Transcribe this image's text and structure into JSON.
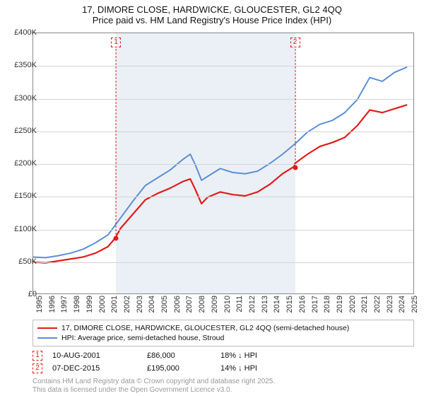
{
  "title_line1": "17, DIMORE CLOSE, HARDWICKE, GLOUCESTER, GL2 4QQ",
  "title_line2": "Price paid vs. HM Land Registry's House Price Index (HPI)",
  "chart": {
    "type": "line",
    "x_years": [
      1995,
      1996,
      1997,
      1998,
      1999,
      2000,
      2001,
      2002,
      2003,
      2004,
      2005,
      2006,
      2007,
      2008,
      2009,
      2010,
      2011,
      2012,
      2013,
      2014,
      2015,
      2016,
      2017,
      2018,
      2019,
      2020,
      2021,
      2022,
      2023,
      2024,
      2025
    ],
    "xlim": [
      1995,
      2025.5
    ],
    "ylim": [
      0,
      400000
    ],
    "y_ticks": [
      0,
      50000,
      100000,
      150000,
      200000,
      250000,
      300000,
      350000,
      400000
    ],
    "y_tick_labels": [
      "£0",
      "£50K",
      "£100K",
      "£150K",
      "£200K",
      "£250K",
      "£300K",
      "£350K",
      "£400K"
    ],
    "shade_band": {
      "start": 2001.61,
      "end": 2015.93,
      "color": "#bcd0e0",
      "opacity": 0.35
    },
    "series": [
      {
        "name": "property",
        "color": "#e31b1b",
        "width": 2.2,
        "points": [
          [
            1995,
            48000
          ],
          [
            1996,
            47000
          ],
          [
            1997,
            50000
          ],
          [
            1998,
            53000
          ],
          [
            1999,
            56000
          ],
          [
            2000,
            62000
          ],
          [
            2001,
            72000
          ],
          [
            2001.61,
            86000
          ],
          [
            2002,
            100000
          ],
          [
            2003,
            122000
          ],
          [
            2004,
            144000
          ],
          [
            2005,
            154000
          ],
          [
            2006,
            162000
          ],
          [
            2007,
            172000
          ],
          [
            2007.6,
            176000
          ],
          [
            2008,
            160000
          ],
          [
            2008.5,
            138000
          ],
          [
            2009,
            148000
          ],
          [
            2010,
            156000
          ],
          [
            2011,
            152000
          ],
          [
            2012,
            150000
          ],
          [
            2013,
            156000
          ],
          [
            2014,
            168000
          ],
          [
            2015,
            184000
          ],
          [
            2015.93,
            195000
          ],
          [
            2016,
            200000
          ],
          [
            2017,
            214000
          ],
          [
            2018,
            226000
          ],
          [
            2019,
            232000
          ],
          [
            2020,
            240000
          ],
          [
            2021,
            258000
          ],
          [
            2022,
            282000
          ],
          [
            2023,
            278000
          ],
          [
            2024,
            284000
          ],
          [
            2025,
            290000
          ]
        ]
      },
      {
        "name": "hpi",
        "color": "#5b8fd6",
        "width": 2.0,
        "points": [
          [
            1995,
            56000
          ],
          [
            1996,
            55000
          ],
          [
            1997,
            58000
          ],
          [
            1998,
            62000
          ],
          [
            1999,
            68000
          ],
          [
            2000,
            78000
          ],
          [
            2001,
            90000
          ],
          [
            2002,
            116000
          ],
          [
            2003,
            142000
          ],
          [
            2004,
            166000
          ],
          [
            2005,
            178000
          ],
          [
            2006,
            190000
          ],
          [
            2007,
            206000
          ],
          [
            2007.6,
            214000
          ],
          [
            2008,
            198000
          ],
          [
            2008.5,
            174000
          ],
          [
            2009,
            180000
          ],
          [
            2010,
            192000
          ],
          [
            2011,
            186000
          ],
          [
            2012,
            184000
          ],
          [
            2013,
            188000
          ],
          [
            2014,
            200000
          ],
          [
            2015,
            214000
          ],
          [
            2016,
            230000
          ],
          [
            2017,
            248000
          ],
          [
            2018,
            260000
          ],
          [
            2019,
            266000
          ],
          [
            2020,
            278000
          ],
          [
            2021,
            298000
          ],
          [
            2022,
            332000
          ],
          [
            2023,
            326000
          ],
          [
            2024,
            340000
          ],
          [
            2025,
            348000
          ]
        ]
      }
    ],
    "markers": [
      {
        "id": "1",
        "x": 2001.61,
        "y": 86000,
        "color": "#e31b1b"
      },
      {
        "id": "2",
        "x": 2015.93,
        "y": 195000,
        "color": "#e31b1b"
      }
    ],
    "background_color": "#ffffff",
    "grid_color": "#d4d4d4",
    "axis_color": "#888888"
  },
  "legend": {
    "items": [
      {
        "color": "#e31b1b",
        "label": "17, DIMORE CLOSE, HARDWICKE, GLOUCESTER, GL2 4QQ (semi-detached house)"
      },
      {
        "color": "#5b8fd6",
        "label": "HPI: Average price, semi-detached house, Stroud"
      }
    ]
  },
  "sales": [
    {
      "id": "1",
      "color": "#e31b1b",
      "date": "10-AUG-2001",
      "price": "£86,000",
      "delta": "18% ↓ HPI"
    },
    {
      "id": "2",
      "color": "#e31b1b",
      "date": "07-DEC-2015",
      "price": "£195,000",
      "delta": "14% ↓ HPI"
    }
  ],
  "footer": {
    "line1": "Contains HM Land Registry data © Crown copyright and database right 2025.",
    "line2": "This data is licensed under the Open Government Licence v3.0."
  }
}
